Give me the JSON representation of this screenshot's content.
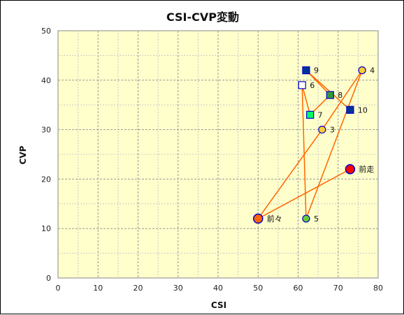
{
  "chart_data": {
    "type": "scatter",
    "title": "CSI-CVP変動",
    "xlabel": "CSI",
    "ylabel": "CVP",
    "xlim": [
      0,
      80
    ],
    "ylim": [
      0,
      50
    ],
    "x_ticks": [
      "0",
      "10",
      "20",
      "30",
      "40",
      "50",
      "60",
      "70",
      "80"
    ],
    "y_ticks": [
      "0",
      "10",
      "20",
      "30",
      "40",
      "50"
    ],
    "grid": true,
    "plot_background": "#ffffcc",
    "line_color": "#ff6600",
    "path_order": [
      "前走",
      "前々",
      "3",
      "4",
      "5",
      "6",
      "7",
      "8",
      "9",
      "10"
    ],
    "points": [
      {
        "label": "前走",
        "x": 73,
        "y": 22,
        "marker": "circle-large",
        "color": "#ff0000"
      },
      {
        "label": "前々",
        "x": 50,
        "y": 12,
        "marker": "circle-large",
        "color": "#ff6600"
      },
      {
        "label": "3",
        "x": 66,
        "y": 30,
        "marker": "circle",
        "color": "#ffcc33"
      },
      {
        "label": "4",
        "x": 76,
        "y": 42,
        "marker": "circle",
        "color": "#ffcc33"
      },
      {
        "label": "5",
        "x": 62,
        "y": 12,
        "marker": "circle",
        "color": "#66cc33"
      },
      {
        "label": "6",
        "x": 61,
        "y": 39,
        "marker": "square",
        "color": "#ffffff"
      },
      {
        "label": "7",
        "x": 63,
        "y": 33,
        "marker": "square",
        "color": "#00ff66"
      },
      {
        "label": "8",
        "x": 68,
        "y": 37,
        "marker": "square",
        "color": "#339933"
      },
      {
        "label": "9",
        "x": 62,
        "y": 42,
        "marker": "square",
        "color": "#003399"
      },
      {
        "label": "10",
        "x": 73,
        "y": 34,
        "marker": "square",
        "color": "#003399"
      }
    ]
  }
}
